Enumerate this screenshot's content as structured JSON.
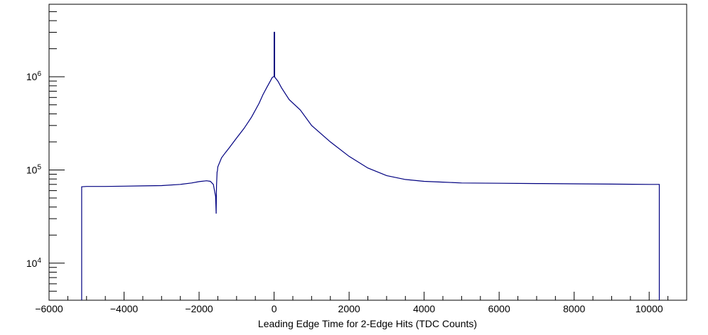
{
  "chart_data": {
    "type": "histogram-line",
    "xlabel": "Leading Edge Time for 2-Edge Hits (TDC Counts)",
    "ylabel": "",
    "yscale": "log",
    "xlim": [
      -6000,
      11000
    ],
    "ylim": [
      4000,
      6000000
    ],
    "grid": false,
    "line_color": "#000080",
    "x_ticks": [
      -6000,
      -4000,
      -2000,
      0,
      2000,
      4000,
      6000,
      8000,
      10000
    ],
    "x_tick_labels": [
      "−6000",
      "−4000",
      "−2000",
      "0",
      "2000",
      "4000",
      "6000",
      "8000",
      "10000"
    ],
    "y_ticks": [
      10000,
      100000,
      1000000
    ],
    "y_tick_labels": [
      {
        "base": "10",
        "exp": "4"
      },
      {
        "base": "10",
        "exp": "5"
      },
      {
        "base": "10",
        "exp": "6"
      }
    ],
    "series": [
      {
        "x": [
          -5130,
          -5130,
          -5000,
          -4500,
          -4000,
          -3500,
          -3000,
          -2500,
          -2200,
          -2000,
          -1800,
          -1700,
          -1620,
          -1560,
          -1545,
          -1540,
          -1535,
          -1520,
          -1510,
          -1500,
          -1400,
          -1300,
          -1200,
          -1000,
          -800,
          -600,
          -400,
          -300,
          -200,
          -100,
          -50,
          -20,
          0,
          0,
          15,
          15,
          30,
          100,
          200,
          400,
          700,
          1000,
          1500,
          2000,
          2500,
          3000,
          3500,
          4000,
          4500,
          5000,
          6000,
          7000,
          8000,
          9000,
          10000,
          10270,
          10270
        ],
        "y": [
          4000,
          66000,
          66500,
          66500,
          67000,
          67500,
          68000,
          70000,
          72500,
          75000,
          76500,
          75500,
          70000,
          52000,
          34000,
          50000,
          68000,
          95000,
          98000,
          108000,
          135000,
          153000,
          172000,
          220000,
          280000,
          370000,
          520000,
          640000,
          760000,
          900000,
          980000,
          1000000,
          1000000,
          3000000,
          3000000,
          1000000,
          975000,
          900000,
          760000,
          570000,
          440000,
          300000,
          200000,
          140000,
          105000,
          87000,
          79000,
          75500,
          74000,
          72500,
          72000,
          71500,
          71000,
          70500,
          70000,
          70000,
          4000
        ]
      }
    ]
  }
}
